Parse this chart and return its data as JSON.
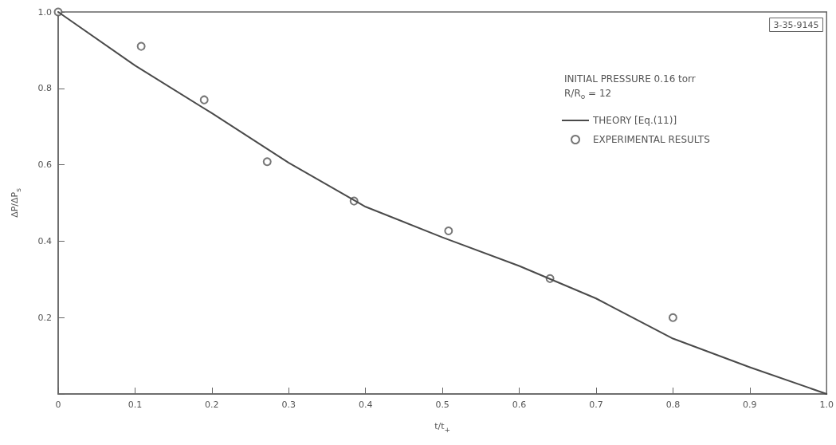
{
  "chart_data": {
    "type": "line",
    "xlabel": "t/t$_{+}$",
    "ylabel": "ΔP/ΔP$_{s}$",
    "annotations": [
      "3-35-9145",
      "INITIAL PRESSURE 0.16 torr",
      "R/R$_{o}$ = 12"
    ],
    "series": [
      {
        "name": "THEORY [Eq.(11)]",
        "color": "#4a4a4a",
        "marker": "none",
        "x": [
          0,
          0.1,
          0.2,
          0.3,
          0.4,
          0.5,
          0.6,
          0.7,
          0.8,
          0.9,
          1.0
        ],
        "values": [
          1,
          0.86,
          0.735,
          0.605,
          0.49,
          0.41,
          0.335,
          0.25,
          0.145,
          0.07,
          0
        ]
      },
      {
        "name": "EXPERIMENTAL RESULTS",
        "type": "scatter",
        "color": "#555555",
        "marker": "circle",
        "x": [
          0,
          0.108,
          0.19,
          0.272,
          0.385,
          0.508,
          0.64,
          0.8
        ],
        "values": [
          1.0,
          0.91,
          0.77,
          0.608,
          0.505,
          0.427,
          0.302,
          0.2
        ]
      }
    ],
    "xlim": [
      0,
      1
    ],
    "ylim": [
      0,
      1
    ],
    "xticks": [
      0,
      0.1,
      0.2,
      0.3,
      0.4,
      0.5,
      0.6,
      0.7,
      0.8,
      0.9,
      {
        "value": 1,
        "label": "1.0"
      }
    ],
    "yticks": [
      {
        "value": 0,
        "label": null
      },
      0.2,
      0.4,
      0.6,
      0.8,
      {
        "value": 1,
        "label": "1.0"
      }
    ],
    "grid": false,
    "legend": "right",
    "line_style": "solid"
  }
}
